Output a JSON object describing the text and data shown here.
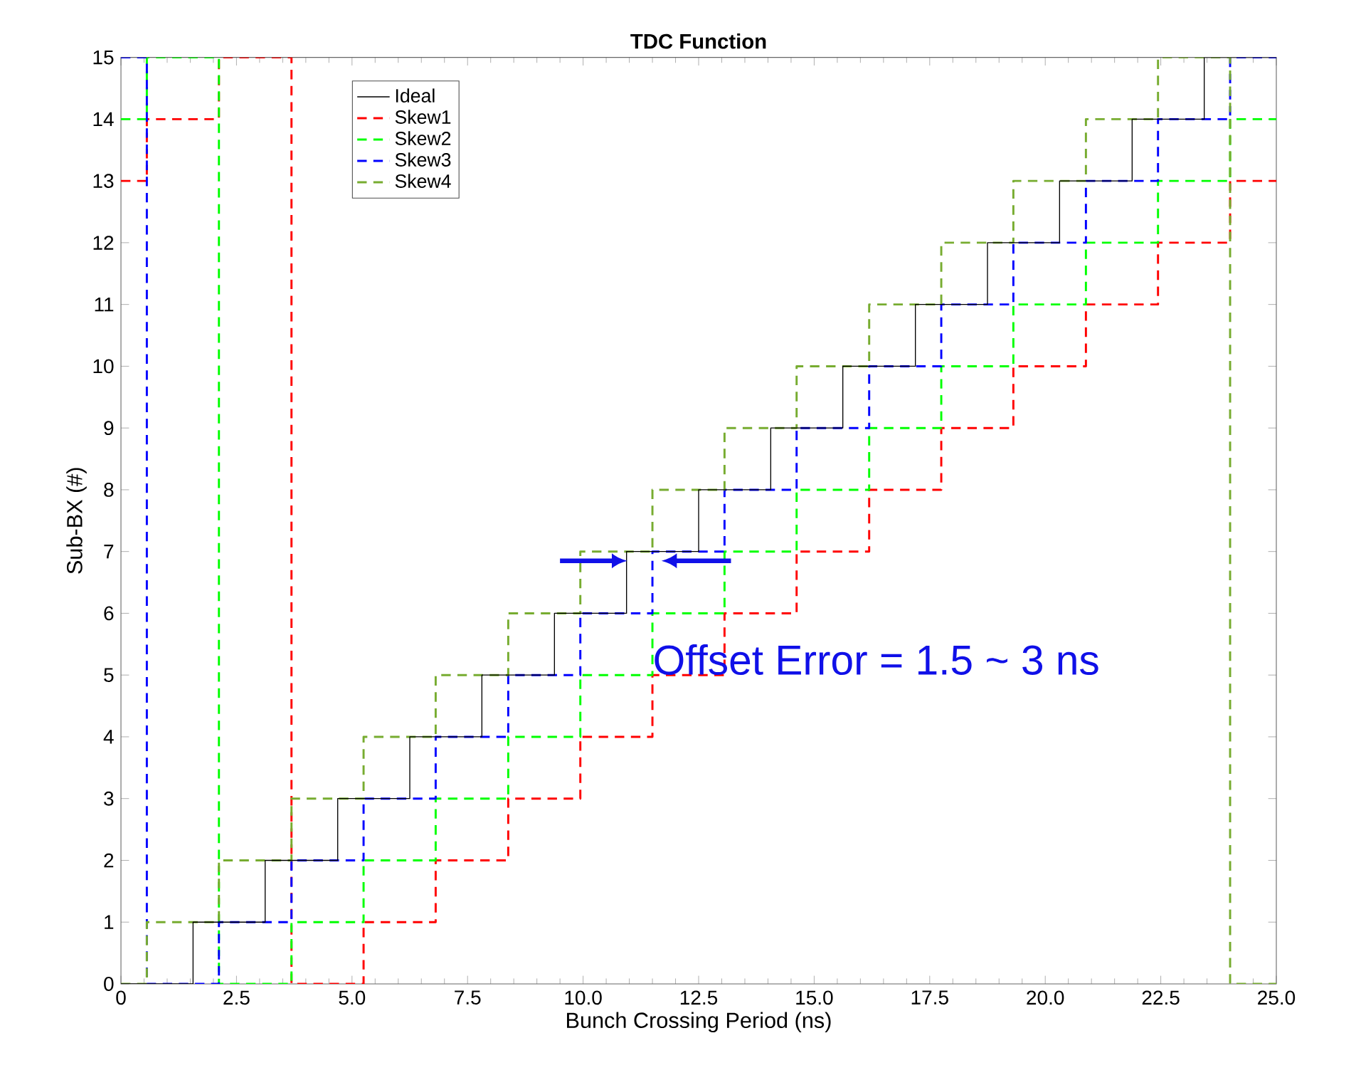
{
  "chart_data": {
    "type": "step",
    "title": "TDC Function",
    "xlabel": "Bunch Crossing Period (ns)",
    "ylabel": "Sub-BX (#)",
    "xlim": [
      0,
      25
    ],
    "ylim": [
      0,
      15
    ],
    "xticks": [
      0,
      2.5,
      {
        "value": 5,
        "label": "5.0"
      },
      7.5,
      {
        "value": 10,
        "label": "10.0"
      },
      12.5,
      {
        "value": 15,
        "label": "15.0"
      },
      17.5,
      {
        "value": 20,
        "label": "20.0"
      },
      22.5,
      {
        "value": 25,
        "label": "25.0"
      }
    ],
    "yticks": [
      0,
      1,
      2,
      3,
      4,
      5,
      6,
      7,
      8,
      9,
      10,
      11,
      12,
      13,
      14,
      15
    ],
    "grid": false,
    "legend": "top left",
    "marker": "none",
    "annotations": [
      "Offset Error = 1.5 ~ 3 ns"
    ],
    "series": [
      {
        "name": "Ideal",
        "color": "#000000",
        "line_style": "solid",
        "x": [
          0,
          1.56,
          3.12,
          4.69,
          6.25,
          7.81,
          9.38,
          10.94,
          12.5,
          14.06,
          15.62,
          17.19,
          18.75,
          20.31,
          21.88,
          23.44,
          25
        ],
        "values": [
          0,
          1,
          2,
          3,
          4,
          5,
          6,
          7,
          8,
          9,
          10,
          11,
          12,
          13,
          14,
          15,
          15
        ]
      },
      {
        "name": "Skew1",
        "color": "#ff0000",
        "line_style": "dashed",
        "x": [
          0,
          0.56,
          2.12,
          3.69,
          5.25,
          6.81,
          8.38,
          9.94,
          11.5,
          13.06,
          14.62,
          16.19,
          17.75,
          19.31,
          20.88,
          22.44,
          24.0,
          25
        ],
        "values": [
          13,
          14,
          15,
          0,
          1,
          2,
          3,
          4,
          5,
          6,
          7,
          8,
          9,
          10,
          11,
          12,
          13,
          13
        ]
      },
      {
        "name": "Skew2",
        "color": "#00ff00",
        "line_style": "dashed",
        "x": [
          0,
          0.56,
          2.12,
          3.69,
          5.25,
          6.81,
          8.38,
          9.94,
          11.5,
          13.06,
          14.62,
          16.19,
          17.75,
          19.31,
          20.88,
          22.44,
          24.0,
          25
        ],
        "values": [
          14,
          15,
          0,
          1,
          2,
          3,
          4,
          5,
          6,
          7,
          8,
          9,
          10,
          11,
          12,
          13,
          14,
          14
        ]
      },
      {
        "name": "Skew3",
        "color": "#0000ff",
        "line_style": "dashed",
        "x": [
          0,
          0.56,
          2.12,
          3.69,
          5.25,
          6.81,
          8.38,
          9.94,
          11.5,
          13.06,
          14.62,
          16.19,
          17.75,
          19.31,
          20.88,
          22.44,
          24.0,
          25
        ],
        "values": [
          15,
          0,
          1,
          2,
          3,
          4,
          5,
          6,
          7,
          8,
          9,
          10,
          11,
          12,
          13,
          14,
          15,
          15
        ]
      },
      {
        "name": "Skew4",
        "color": "#77ac30",
        "line_style": "dashed",
        "x": [
          0,
          0.56,
          2.12,
          3.69,
          5.25,
          6.81,
          8.38,
          9.94,
          11.5,
          13.06,
          14.62,
          16.19,
          17.75,
          19.31,
          20.88,
          22.44,
          24.0,
          25
        ],
        "values": [
          0,
          1,
          2,
          3,
          4,
          5,
          6,
          7,
          8,
          9,
          10,
          11,
          12,
          13,
          14,
          15,
          0,
          0
        ]
      }
    ]
  }
}
